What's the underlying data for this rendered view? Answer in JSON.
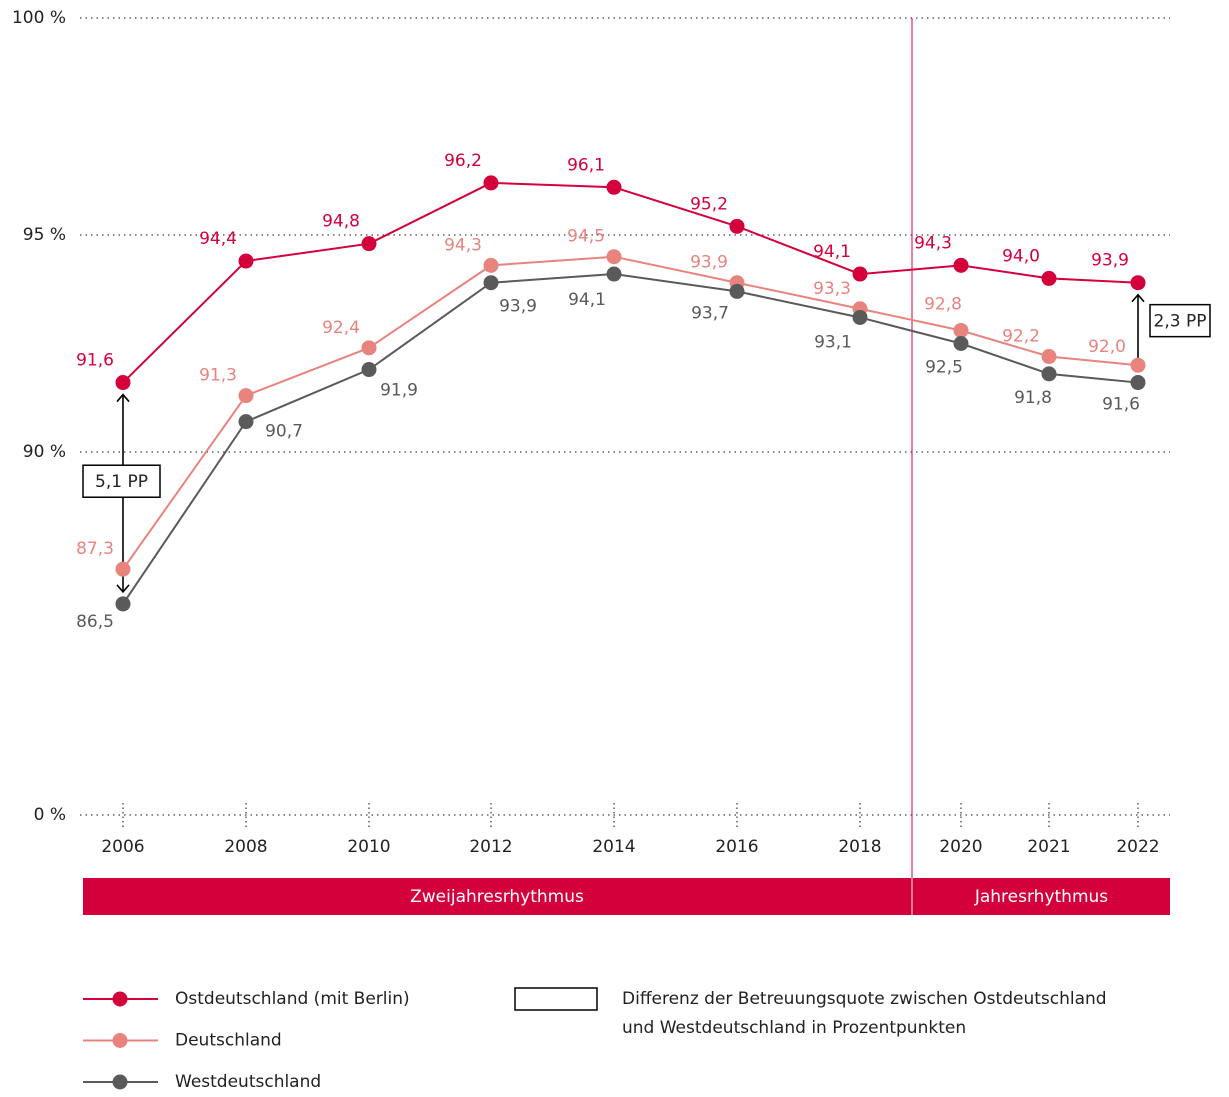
{
  "chart_data": {
    "type": "line",
    "categories": [
      "2006",
      "2008",
      "2010",
      "2012",
      "2014",
      "2016",
      "2018",
      "2020",
      "2021",
      "2022"
    ],
    "series": [
      {
        "name": "Ostdeutschland (mit Berlin)",
        "color": "#d4003c",
        "values": [
          91.6,
          94.4,
          94.8,
          96.2,
          96.1,
          95.2,
          94.1,
          94.3,
          94.0,
          93.9
        ],
        "value_labels": [
          "91,6",
          "94,4",
          "94,8",
          "96,2",
          "96,1",
          "95,2",
          "94,1",
          "94,3",
          "94,0",
          "93,9"
        ]
      },
      {
        "name": "Deutschland",
        "color": "#e8837e",
        "values": [
          87.3,
          91.3,
          92.4,
          94.3,
          94.5,
          93.9,
          93.3,
          92.8,
          92.2,
          92.0
        ],
        "value_labels": [
          "87,3",
          "91,3",
          "92,4",
          "94,3",
          "94,5",
          "93,9",
          "93,3",
          "92,8",
          "92,2",
          "92,0"
        ]
      },
      {
        "name": "Westdeutschland",
        "color": "#5a5a5a",
        "values": [
          86.5,
          90.7,
          91.9,
          93.9,
          94.1,
          93.7,
          93.1,
          92.5,
          91.8,
          91.6
        ],
        "value_labels": [
          "86,5",
          "90,7",
          "91,9",
          "93,9",
          "94,1",
          "93,7",
          "93,1",
          "92,5",
          "91,8",
          "91,6"
        ]
      }
    ],
    "ylim": [
      0,
      100
    ],
    "axis_break": [
      0,
      84
    ],
    "yticks": [
      {
        "value": 0,
        "label": "0 %"
      },
      {
        "value": 90,
        "label": "90 %"
      },
      {
        "value": 95,
        "label": "95 %"
      },
      {
        "value": 100,
        "label": "100 %"
      }
    ],
    "grid": true,
    "periods": [
      {
        "label": "Zweijahresrhythmus",
        "from": "2006",
        "to": "2018"
      },
      {
        "label": "Jahresrhythmus",
        "from": "2020",
        "to": "2022"
      }
    ],
    "annotations": [
      {
        "x": "2006",
        "text": "5,1 PP"
      },
      {
        "x": "2022",
        "text": "2,3 PP"
      }
    ],
    "box_legend": [
      "Differenz der Betreuungsquote zwischen Ostdeutschland",
      "und Westdeutschland in Prozentpunkten"
    ]
  }
}
